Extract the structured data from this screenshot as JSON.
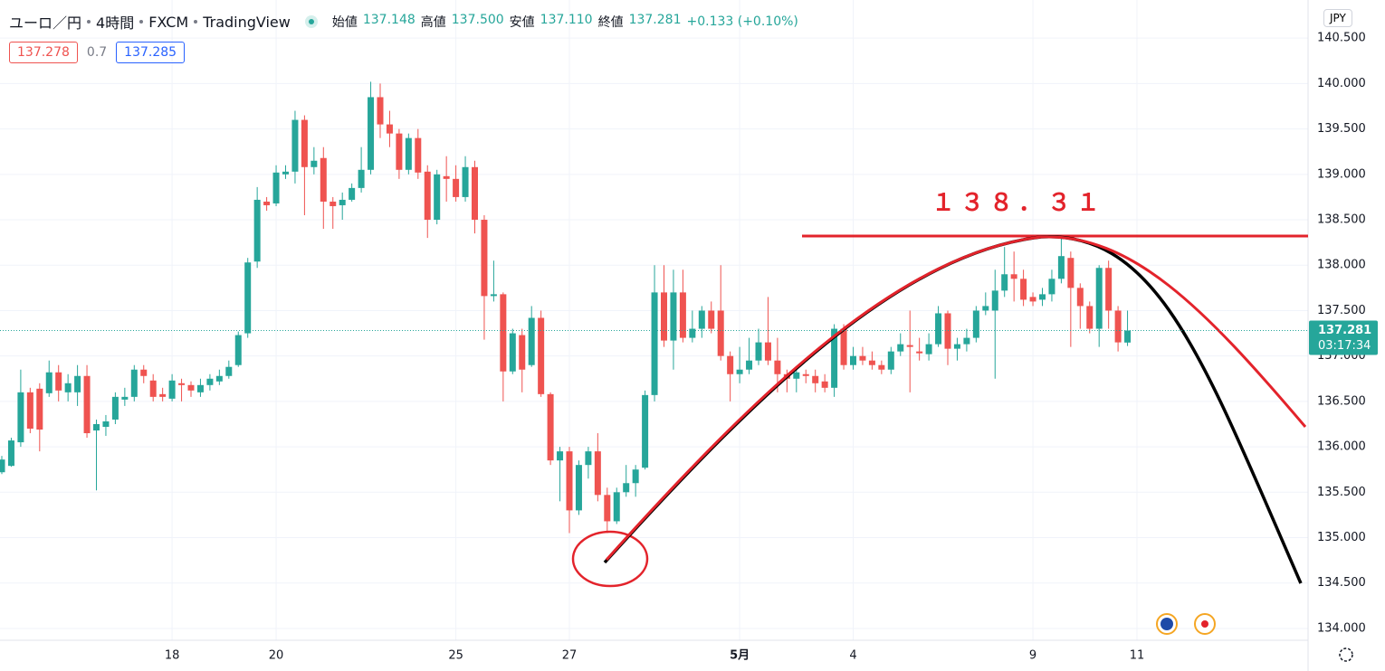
{
  "header": {
    "symbol": "ユーロ／円",
    "interval": "4時間",
    "exchange": "FXCM",
    "source": "TradingView",
    "ohlc": [
      {
        "label": "始値",
        "value": "137.148"
      },
      {
        "label": "高値",
        "value": "137.500"
      },
      {
        "label": "安値",
        "value": "137.110"
      },
      {
        "label": "終値",
        "value": "137.281"
      }
    ],
    "change": "+0.133 (+0.10%)",
    "bid": "137.278",
    "spread": "0.7",
    "ask": "137.285",
    "currency": "JPY",
    "countdown": "03:17:34"
  },
  "chart_data": {
    "type": "candlestick",
    "annotation": "１３８．３１",
    "up_color": "#26a69a",
    "down_color": "#ef5350",
    "grid": true,
    "categories": [
      null,
      null,
      null,
      null,
      null,
      null,
      null,
      null,
      null,
      null,
      null,
      null,
      null,
      null,
      null,
      null,
      null,
      null,
      "18",
      null,
      null,
      null,
      null,
      null,
      null,
      null,
      null,
      null,
      null,
      "20",
      null,
      null,
      null,
      null,
      null,
      null,
      null,
      null,
      null,
      null,
      null,
      null,
      null,
      null,
      null,
      null,
      null,
      null,
      "25",
      null,
      null,
      null,
      null,
      null,
      null,
      null,
      null,
      null,
      null,
      null,
      "27",
      null,
      null,
      null,
      null,
      null,
      null,
      null,
      null,
      null,
      null,
      null,
      null,
      null,
      null,
      null,
      null,
      null,
      "5月",
      null,
      null,
      null,
      null,
      null,
      null,
      null,
      null,
      null,
      null,
      null,
      "4",
      null,
      null,
      null,
      null,
      null,
      null,
      null,
      null,
      null,
      null,
      null,
      null,
      null,
      null,
      null,
      null,
      null,
      null,
      "9",
      null,
      null,
      null,
      null,
      null,
      null,
      null,
      null,
      null,
      null,
      "11"
    ],
    "open": [
      135.72,
      135.79,
      136.05,
      136.6,
      136.64,
      136.59,
      136.82,
      136.6,
      136.6,
      136.78,
      136.18,
      136.22,
      136.3,
      136.52,
      136.55,
      136.85,
      136.73,
      136.58,
      136.53,
      136.7,
      136.68,
      136.6,
      136.68,
      136.72,
      136.78,
      136.9,
      137.25,
      138.04,
      138.7,
      138.68,
      139.0,
      139.03,
      139.6,
      139.08,
      139.18,
      138.7,
      138.66,
      138.72,
      138.85,
      139.05,
      139.85,
      139.55,
      139.45,
      139.05,
      139.4,
      139.03,
      138.5,
      138.98,
      138.95,
      138.75,
      139.08,
      138.5,
      137.66,
      137.68,
      136.83,
      137.23,
      136.9,
      137.42,
      136.58,
      135.85,
      135.95,
      135.3,
      135.8,
      135.95,
      135.47,
      135.18,
      135.5,
      135.6,
      135.77,
      136.57,
      137.7,
      137.17,
      137.7,
      137.2,
      137.3,
      137.5,
      137.5,
      137.0,
      136.8,
      136.85,
      136.95,
      137.15,
      136.95,
      136.8,
      136.75,
      136.8,
      136.78,
      136.72,
      136.65,
      137.3,
      136.9,
      137.0,
      136.95,
      136.9,
      136.85,
      137.05,
      137.12,
      137.05,
      137.02,
      137.13,
      137.47,
      137.08,
      137.13,
      137.2,
      137.5,
      137.5,
      137.72,
      137.9,
      137.85,
      137.65,
      137.62,
      137.68,
      137.85,
      138.08,
      137.75,
      137.55,
      137.3,
      137.97,
      137.5,
      137.148,
      null
    ],
    "high": [
      135.9,
      136.1,
      136.85,
      136.65,
      136.7,
      136.95,
      136.9,
      136.8,
      136.9,
      136.9,
      136.3,
      136.35,
      136.6,
      136.65,
      136.9,
      136.9,
      136.8,
      136.65,
      136.8,
      136.75,
      136.72,
      136.75,
      136.8,
      136.85,
      136.95,
      137.27,
      138.08,
      138.86,
      138.75,
      139.1,
      139.1,
      139.7,
      139.65,
      139.3,
      139.3,
      138.75,
      138.8,
      138.9,
      139.3,
      140.02,
      140.0,
      139.7,
      139.5,
      139.45,
      139.5,
      139.1,
      139.05,
      139.2,
      139.1,
      139.2,
      139.15,
      138.55,
      138.05,
      137.7,
      137.3,
      137.3,
      137.55,
      137.5,
      136.6,
      136.0,
      136.0,
      135.85,
      136.0,
      136.15,
      135.55,
      135.55,
      135.8,
      135.8,
      136.62,
      138.0,
      138.0,
      137.95,
      137.95,
      137.5,
      137.55,
      137.6,
      138.0,
      137.05,
      137.1,
      137.2,
      137.3,
      137.65,
      137.2,
      136.85,
      136.85,
      136.85,
      136.85,
      136.8,
      137.35,
      137.35,
      137.1,
      137.1,
      137.05,
      136.95,
      137.1,
      137.25,
      137.5,
      137.2,
      137.25,
      137.55,
      137.5,
      137.2,
      137.3,
      137.55,
      137.7,
      137.95,
      138.2,
      138.15,
      137.95,
      137.7,
      137.75,
      137.95,
      138.3,
      138.15,
      137.8,
      137.6,
      138.0,
      138.05,
      137.55,
      137.5,
      null
    ],
    "low": [
      135.7,
      135.78,
      136.0,
      136.15,
      135.95,
      136.55,
      136.5,
      136.5,
      136.45,
      136.1,
      135.52,
      136.12,
      136.25,
      136.45,
      136.5,
      136.7,
      136.5,
      136.5,
      136.5,
      136.5,
      136.55,
      136.55,
      136.62,
      136.68,
      136.75,
      136.88,
      137.2,
      137.97,
      138.6,
      138.65,
      138.95,
      138.9,
      138.55,
      139.0,
      138.4,
      138.4,
      138.5,
      138.7,
      138.8,
      139.0,
      139.4,
      139.3,
      138.95,
      139.0,
      138.95,
      138.3,
      138.45,
      138.7,
      138.7,
      138.7,
      138.35,
      137.18,
      137.6,
      136.5,
      136.8,
      136.6,
      136.88,
      136.55,
      135.8,
      135.4,
      135.05,
      135.25,
      135.65,
      135.4,
      135.05,
      135.15,
      135.45,
      135.45,
      135.75,
      136.5,
      137.1,
      136.85,
      137.15,
      137.15,
      137.2,
      137.25,
      136.95,
      136.5,
      136.7,
      136.8,
      136.9,
      136.9,
      136.6,
      136.6,
      136.6,
      136.7,
      136.6,
      136.6,
      136.55,
      136.85,
      136.85,
      136.9,
      136.85,
      136.8,
      136.8,
      137.0,
      136.6,
      136.95,
      136.95,
      137.1,
      136.9,
      136.95,
      137.05,
      137.15,
      137.45,
      136.75,
      137.65,
      137.6,
      137.55,
      137.55,
      137.55,
      137.6,
      137.8,
      137.1,
      137.3,
      137.25,
      137.1,
      137.3,
      137.05,
      137.11,
      null
    ],
    "close": [
      135.86,
      136.07,
      136.6,
      136.2,
      136.19,
      136.82,
      136.62,
      136.7,
      136.78,
      136.15,
      136.25,
      136.28,
      136.55,
      136.55,
      136.85,
      136.78,
      136.55,
      136.55,
      136.73,
      136.68,
      136.62,
      136.68,
      136.75,
      136.78,
      136.88,
      137.23,
      138.03,
      138.72,
      138.66,
      139.02,
      139.03,
      139.6,
      139.08,
      139.15,
      138.7,
      138.65,
      138.72,
      138.85,
      139.05,
      139.85,
      139.55,
      139.45,
      139.05,
      139.4,
      139.02,
      138.5,
      139.0,
      138.95,
      138.75,
      139.08,
      138.5,
      137.66,
      137.68,
      136.83,
      137.25,
      136.85,
      137.42,
      136.58,
      135.85,
      135.95,
      135.3,
      135.8,
      135.95,
      135.47,
      135.18,
      135.5,
      135.6,
      135.75,
      136.57,
      137.7,
      137.17,
      137.7,
      137.2,
      137.3,
      137.5,
      137.3,
      137.0,
      136.8,
      136.85,
      136.95,
      137.15,
      136.95,
      136.8,
      136.75,
      136.82,
      136.78,
      136.7,
      136.65,
      137.3,
      136.9,
      137.0,
      136.95,
      136.9,
      136.85,
      137.05,
      137.13,
      137.1,
      137.03,
      137.13,
      137.47,
      137.08,
      137.13,
      137.2,
      137.5,
      137.55,
      137.72,
      137.9,
      137.85,
      137.62,
      137.6,
      137.68,
      137.85,
      138.1,
      137.75,
      137.55,
      137.3,
      137.97,
      137.5,
      137.15,
      137.281,
      null
    ],
    "ylim": [
      133.87,
      140.92
    ],
    "yticks": [
      {
        "value": 134,
        "label": "134.000"
      },
      {
        "value": 134.5,
        "label": "134.500"
      },
      {
        "value": 135,
        "label": "135.000"
      },
      {
        "value": 135.5,
        "label": "135.500"
      },
      {
        "value": 136,
        "label": "136.000"
      },
      {
        "value": 136.5,
        "label": "136.500"
      },
      {
        "value": 137,
        "label": "137.000"
      },
      {
        "value": 137.5,
        "label": "137.500"
      },
      {
        "value": 138,
        "label": "138.000"
      },
      {
        "value": 138.5,
        "label": "138.500"
      },
      {
        "value": 139,
        "label": "139.000"
      },
      {
        "value": 139.5,
        "label": "139.500"
      },
      {
        "value": 140,
        "label": "140.000"
      },
      {
        "value": 140.5,
        "label": "140.500"
      }
    ]
  }
}
